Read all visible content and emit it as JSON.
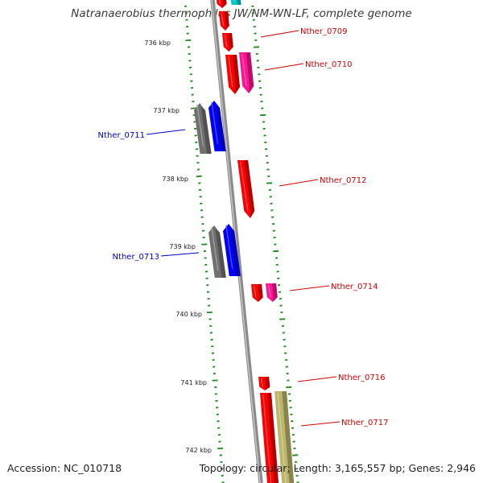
{
  "title": "Natranaerobius thermophilus JW/NM-WN-LF, complete genome",
  "footer": {
    "accession": "Accession: NC_010718",
    "summary": "Topology: circular; Length: 3,165,557 bp; Genes: 2,946"
  },
  "scale": {
    "unit": "kbp",
    "labels": [
      "736 kbp",
      "737 kbp",
      "738 kbp",
      "739 kbp",
      "740 kbp",
      "741 kbp",
      "742 kbp"
    ]
  },
  "colors": {
    "tick_green": "#1e8c1e",
    "backbone": "#8a8a8a",
    "label_red": "#d40000",
    "label_blue": "#0000c8",
    "gene_red": "#ff0000",
    "gene_pink": "#ff1493",
    "gene_blue": "#0000ff",
    "gene_grey": "#707070",
    "gene_khaki": "#bdb76b",
    "gene_cyan": "#00c8c8"
  },
  "genes": [
    {
      "label": "Nther_0709",
      "side": "right",
      "color": "gene_red",
      "label_color": "label_red"
    },
    {
      "label": "Nther_0710",
      "side": "right",
      "color": "gene_red",
      "label_color": "label_red"
    },
    {
      "label": "Nther_0711",
      "side": "left",
      "color": "gene_blue",
      "label_color": "label_blue"
    },
    {
      "label": "Nther_0712",
      "side": "right",
      "color": "gene_red",
      "label_color": "label_red"
    },
    {
      "label": "Nther_0713",
      "side": "left",
      "color": "gene_blue",
      "label_color": "label_blue"
    },
    {
      "label": "Nther_0714",
      "side": "right",
      "color": "gene_red",
      "label_color": "label_red"
    },
    {
      "label": "Nther_0716",
      "side": "right",
      "color": "gene_red",
      "label_color": "label_red"
    },
    {
      "label": "Nther_0717",
      "side": "right",
      "color": "gene_red",
      "label_color": "label_red"
    }
  ]
}
